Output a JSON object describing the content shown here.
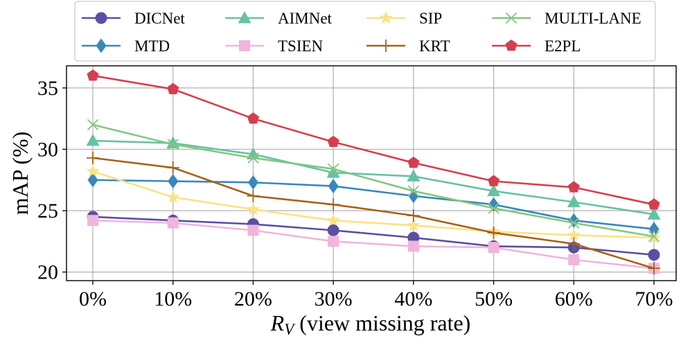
{
  "chart_data": {
    "type": "line",
    "title": "",
    "xlabel_symbol": "R",
    "xlabel_subscript": "V",
    "xlabel_rest": " (view missing rate)",
    "ylabel": "mAP (%)",
    "categories": [
      "0%",
      "10%",
      "20%",
      "30%",
      "40%",
      "50%",
      "60%",
      "70%"
    ],
    "ylim": [
      19.3,
      36.8
    ],
    "yticks": [
      20,
      25,
      30,
      35
    ],
    "grid": true,
    "legend_position": "top-outside",
    "series": [
      {
        "name": "DICNet",
        "color": "#5a4fa2",
        "marker": "circle",
        "values": [
          24.5,
          24.2,
          23.9,
          23.4,
          22.8,
          22.1,
          22.0,
          21.4
        ]
      },
      {
        "name": "MTD",
        "color": "#3a87bc",
        "marker": "diamond",
        "values": [
          27.5,
          27.4,
          27.3,
          27.0,
          26.2,
          25.5,
          24.2,
          23.5
        ]
      },
      {
        "name": "AIMNet",
        "color": "#66c2a4",
        "marker": "triangle",
        "values": [
          30.7,
          30.5,
          29.6,
          28.1,
          27.8,
          26.6,
          25.7,
          24.7
        ]
      },
      {
        "name": "TSIEN",
        "color": "#f0b5dc",
        "marker": "square",
        "values": [
          24.2,
          24.0,
          23.4,
          22.5,
          22.1,
          22.0,
          21.0,
          20.3
        ]
      },
      {
        "name": "SIP",
        "color": "#fde185",
        "marker": "star",
        "values": [
          28.2,
          26.1,
          25.1,
          24.2,
          23.8,
          23.3,
          23.0,
          22.8
        ]
      },
      {
        "name": "KRT",
        "color": "#a6611a",
        "marker": "plus",
        "values": [
          29.3,
          28.5,
          26.2,
          25.5,
          24.6,
          23.2,
          22.3,
          20.3
        ]
      },
      {
        "name": "MULTI-LANE",
        "color": "#84c680",
        "marker": "x",
        "values": [
          32.0,
          30.4,
          29.3,
          28.4,
          26.6,
          25.2,
          24.0,
          22.9
        ]
      },
      {
        "name": "E2PL",
        "color": "#d53e4f",
        "marker": "pentagon",
        "values": [
          36.0,
          34.9,
          32.5,
          30.6,
          28.9,
          27.4,
          26.9,
          25.5
        ]
      }
    ]
  }
}
